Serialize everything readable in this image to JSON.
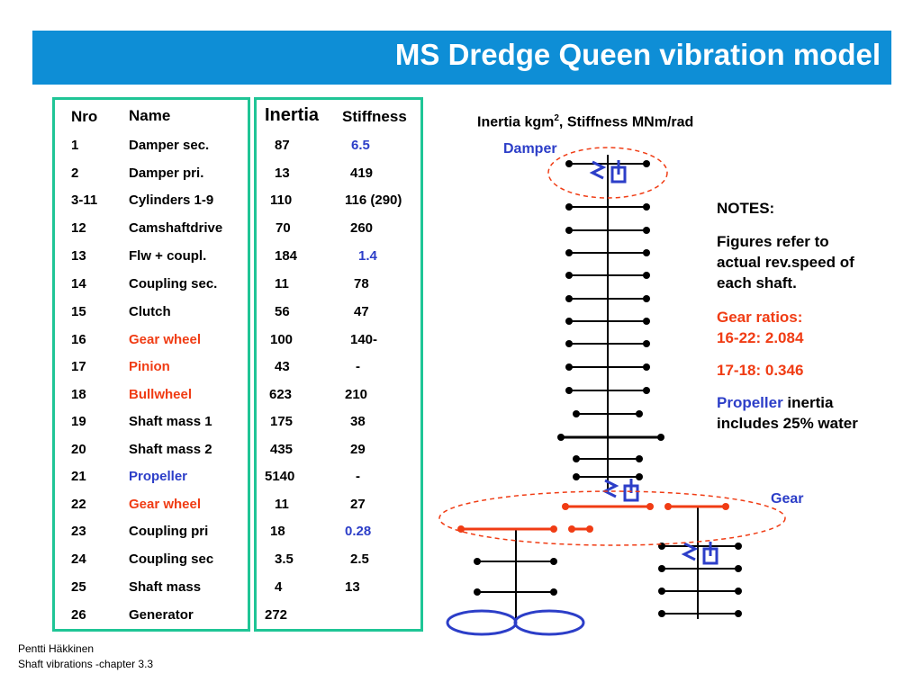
{
  "title": "MS Dredge Queen vibration model",
  "table": {
    "headers": {
      "nro": "Nro",
      "name": "Name",
      "inertia": "Inertia",
      "stiffness": "Stiffness"
    },
    "rows": [
      {
        "nro": "1",
        "name": "Damper sec.",
        "inertia": "87",
        "stiffness": "6.5",
        "name_color": "black",
        "stiff_color": "blue"
      },
      {
        "nro": "2",
        "name": "Damper pri.",
        "inertia": "13",
        "stiffness": "419",
        "name_color": "black",
        "stiff_color": "black"
      },
      {
        "nro": "3-11",
        "name": "Cylinders 1-9",
        "inertia": "110",
        "stiffness": "116 (290)",
        "name_color": "black",
        "stiff_color": "black"
      },
      {
        "nro": "12",
        "name": "Camshaftdrive",
        "inertia": "70",
        "stiffness": "260",
        "name_color": "black",
        "stiff_color": "black"
      },
      {
        "nro": "13",
        "name": "Flw + coupl.",
        "inertia": "184",
        "stiffness": "1.4",
        "name_color": "black",
        "stiff_color": "blue"
      },
      {
        "nro": "14",
        "name": "Coupling sec.",
        "inertia": "11",
        "stiffness": "78",
        "name_color": "black",
        "stiff_color": "black"
      },
      {
        "nro": "15",
        "name": "Clutch",
        "inertia": "56",
        "stiffness": "47",
        "name_color": "black",
        "stiff_color": "black"
      },
      {
        "nro": "16",
        "name": "Gear wheel",
        "inertia": "100",
        "stiffness": "140-",
        "name_color": "red",
        "stiff_color": "black"
      },
      {
        "nro": "17",
        "name": "Pinion",
        "inertia": "43",
        "stiffness": "-",
        "name_color": "red",
        "stiff_color": "black"
      },
      {
        "nro": "18",
        "name": "Bullwheel",
        "inertia": "623",
        "stiffness": "210",
        "name_color": "red",
        "stiff_color": "black"
      },
      {
        "nro": "19",
        "name": "Shaft mass 1",
        "inertia": "175",
        "stiffness": "38",
        "name_color": "black",
        "stiff_color": "black"
      },
      {
        "nro": "20",
        "name": "Shaft mass 2",
        "inertia": "435",
        "stiffness": "29",
        "name_color": "black",
        "stiff_color": "black"
      },
      {
        "nro": "21",
        "name": "Propeller",
        "inertia": "5140",
        "stiffness": "-",
        "name_color": "blue",
        "stiff_color": "black"
      },
      {
        "nro": "22",
        "name": "Gear wheel",
        "inertia": "11",
        "stiffness": "27",
        "name_color": "red",
        "stiff_color": "black"
      },
      {
        "nro": "23",
        "name": "Coupling pri",
        "inertia": "18",
        "stiffness": "0.28",
        "name_color": "black",
        "stiff_color": "blue"
      },
      {
        "nro": "24",
        "name": "Coupling sec",
        "inertia": "3.5",
        "stiffness": "2.5",
        "name_color": "black",
        "stiff_color": "black"
      },
      {
        "nro": "25",
        "name": "Shaft mass",
        "inertia": "4",
        "stiffness": "13",
        "name_color": "black",
        "stiff_color": "black"
      },
      {
        "nro": "26",
        "name": "Generator",
        "inertia": "272",
        "stiffness": "",
        "name_color": "black",
        "stiff_color": "black"
      }
    ]
  },
  "units": {
    "prefix": "Inertia kgm",
    "sup": "2",
    "suffix": ", Stiffness MNm/rad"
  },
  "diagram": {
    "damper_label": "Damper",
    "gear_label": "Gear"
  },
  "notes": {
    "heading": "NOTES:",
    "line1": "Figures refer to actual rev.speed of each shaft.",
    "ratios_heading": "Gear ratios:",
    "ratio1": "16-22: 2.084",
    "ratio2": "17-18: 0.346",
    "propeller_word": "Propeller",
    "propeller_rest": " inertia includes 25% water"
  },
  "footer": {
    "author": "Pentti Häkkinen",
    "course": "Shaft vibrations  -chapter 3.3"
  },
  "colors": {
    "title_bar": "#0e8ed6",
    "box_border": "#1fc596",
    "red": "#f03c14",
    "blue": "#2c3ec8"
  }
}
